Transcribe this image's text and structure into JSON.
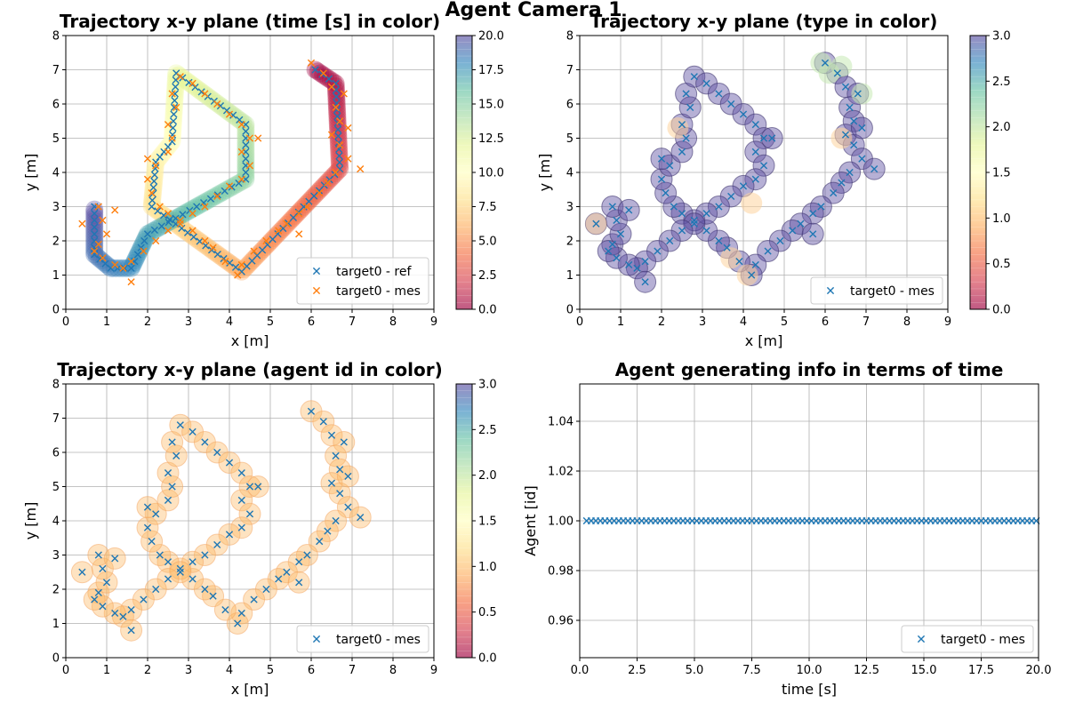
{
  "figure": {
    "suptitle": "Agent Camera 1"
  },
  "colors": {
    "ref": "#1f77b4",
    "mes": "#ff7f0e",
    "violet": "#5e4fa2",
    "orange": "#fdb863"
  },
  "chart_data": [
    {
      "id": "time",
      "type": "scatter",
      "title": "Trajectory x-y plane  (time [s] in color)",
      "xlabel": "x [m]",
      "ylabel": "y [m]",
      "xlim": [
        0,
        9
      ],
      "ylim": [
        0,
        8
      ],
      "xticks": [
        "0",
        "1",
        "2",
        "3",
        "4",
        "5",
        "6",
        "7",
        "8",
        "9"
      ],
      "yticks": [
        "0",
        "1",
        "2",
        "3",
        "4",
        "5",
        "6",
        "7",
        "8"
      ],
      "grid": true,
      "legend": {
        "placement": "lower-right",
        "entries": [
          "target0 - ref",
          "target0 - mes"
        ]
      },
      "colorbar": {
        "range": [
          0,
          20
        ],
        "ticks": [
          "0.0",
          "2.5",
          "5.0",
          "7.5",
          "10.0",
          "12.5",
          "15.0",
          "17.5",
          "20.0"
        ],
        "colormap": "Spectral"
      },
      "series": [
        {
          "name": "target0 - ref",
          "kind": "reference path",
          "path": [
            [
              6.1,
              7.0
            ],
            [
              6.6,
              6.6
            ],
            [
              6.7,
              4.1
            ],
            [
              4.3,
              1.1
            ],
            [
              2.1,
              3.0
            ],
            [
              2.2,
              4.3
            ],
            [
              2.6,
              4.9
            ],
            [
              2.7,
              6.9
            ],
            [
              4.4,
              5.4
            ],
            [
              4.4,
              3.8
            ],
            [
              2.0,
              2.2
            ],
            [
              1.6,
              1.2
            ],
            [
              1.1,
              1.2
            ],
            [
              0.7,
              1.6
            ],
            [
              0.7,
              3.0
            ]
          ]
        },
        {
          "name": "target0 - mes",
          "kind": "measurements",
          "points": [
            [
              6.0,
              7.2
            ],
            [
              6.3,
              6.9
            ],
            [
              6.5,
              6.5
            ],
            [
              6.8,
              6.3
            ],
            [
              6.6,
              5.9
            ],
            [
              6.7,
              5.5
            ],
            [
              6.5,
              5.1
            ],
            [
              6.7,
              4.8
            ],
            [
              6.9,
              4.4
            ],
            [
              6.6,
              4.0
            ],
            [
              6.4,
              3.7
            ],
            [
              6.2,
              3.4
            ],
            [
              5.9,
              3.0
            ],
            [
              5.7,
              2.8
            ],
            [
              5.4,
              2.5
            ],
            [
              5.2,
              2.3
            ],
            [
              4.9,
              2.0
            ],
            [
              4.6,
              1.7
            ],
            [
              4.3,
              1.3
            ],
            [
              4.2,
              1.0
            ],
            [
              3.9,
              1.4
            ],
            [
              3.6,
              1.8
            ],
            [
              3.4,
              2.0
            ],
            [
              3.1,
              2.3
            ],
            [
              2.8,
              2.6
            ],
            [
              2.5,
              2.8
            ],
            [
              2.3,
              3.0
            ],
            [
              2.1,
              3.4
            ],
            [
              2.0,
              3.8
            ],
            [
              2.2,
              4.2
            ],
            [
              2.5,
              4.6
            ],
            [
              2.6,
              5.0
            ],
            [
              2.5,
              5.4
            ],
            [
              2.7,
              5.9
            ],
            [
              2.6,
              6.3
            ],
            [
              2.8,
              6.8
            ],
            [
              3.1,
              6.6
            ],
            [
              3.4,
              6.3
            ],
            [
              3.7,
              6.0
            ],
            [
              4.0,
              5.7
            ],
            [
              4.3,
              5.4
            ],
            [
              4.5,
              5.0
            ],
            [
              4.3,
              4.6
            ],
            [
              4.5,
              4.2
            ],
            [
              4.3,
              3.8
            ],
            [
              4.0,
              3.6
            ],
            [
              3.7,
              3.3
            ],
            [
              3.4,
              3.0
            ],
            [
              3.1,
              2.8
            ],
            [
              2.8,
              2.5
            ],
            [
              2.5,
              2.3
            ],
            [
              2.2,
              2.0
            ],
            [
              1.9,
              1.7
            ],
            [
              1.6,
              1.4
            ],
            [
              1.4,
              1.2
            ],
            [
              1.2,
              1.3
            ],
            [
              0.9,
              1.5
            ],
            [
              0.8,
              1.9
            ],
            [
              1.0,
              2.2
            ],
            [
              0.9,
              2.6
            ],
            [
              0.8,
              3.0
            ],
            [
              0.4,
              2.5
            ],
            [
              1.2,
              2.9
            ],
            [
              0.7,
              1.7
            ],
            [
              1.6,
              0.8
            ],
            [
              7.2,
              4.1
            ],
            [
              5.7,
              2.2
            ],
            [
              4.7,
              5.0
            ],
            [
              2.0,
              4.4
            ],
            [
              6.9,
              5.3
            ]
          ]
        }
      ]
    },
    {
      "id": "type",
      "type": "scatter",
      "title": "Trajectory x-y plane (type in color)",
      "xlabel": "x [m]",
      "ylabel": "y [m]",
      "xlim": [
        0,
        9
      ],
      "ylim": [
        0,
        8
      ],
      "xticks": [
        "0",
        "1",
        "2",
        "3",
        "4",
        "5",
        "6",
        "7",
        "8",
        "9"
      ],
      "yticks": [
        "0",
        "1",
        "2",
        "3",
        "4",
        "5",
        "6",
        "7",
        "8"
      ],
      "grid": true,
      "legend": {
        "placement": "lower-right",
        "entries": [
          "target0 - mes"
        ]
      },
      "colorbar": {
        "range": [
          0,
          3
        ],
        "ticks": [
          "0.0",
          "0.5",
          "1.0",
          "1.5",
          "2.0",
          "2.5",
          "3.0"
        ],
        "colormap": "Spectral"
      },
      "series": [
        {
          "name": "target0 - mes",
          "points_from": "time"
        }
      ],
      "special_points": [
        [
          5.9,
          7.2
        ],
        [
          6.1,
          6.9
        ],
        [
          6.4,
          7.1
        ],
        [
          6.9,
          6.3
        ],
        [
          0.4,
          2.5
        ],
        [
          2.4,
          5.3
        ],
        [
          4.2,
          3.1
        ],
        [
          4.1,
          1.0
        ],
        [
          3.7,
          1.5
        ],
        [
          6.4,
          5.0
        ]
      ]
    },
    {
      "id": "agent",
      "type": "scatter",
      "title": "Trajectory x-y plane (agent id in color)",
      "xlabel": "x [m]",
      "ylabel": "y [m]",
      "xlim": [
        0,
        9
      ],
      "ylim": [
        0,
        8
      ],
      "xticks": [
        "0",
        "1",
        "2",
        "3",
        "4",
        "5",
        "6",
        "7",
        "8",
        "9"
      ],
      "yticks": [
        "0",
        "1",
        "2",
        "3",
        "4",
        "5",
        "6",
        "7",
        "8"
      ],
      "grid": true,
      "legend": {
        "placement": "lower-right",
        "entries": [
          "target0 - mes"
        ]
      },
      "colorbar": {
        "range": [
          0,
          3
        ],
        "ticks": [
          "0.0",
          "0.5",
          "1.0",
          "1.5",
          "2.0",
          "2.5",
          "3.0"
        ],
        "colormap": "Spectral"
      },
      "series": [
        {
          "name": "target0 - mes",
          "points_from": "time"
        }
      ]
    },
    {
      "id": "info",
      "type": "scatter",
      "title": "Agent generating info in terms of time",
      "xlabel": "time [s]",
      "ylabel": "Agent [id]",
      "xlim": [
        0,
        20
      ],
      "ylim": [
        0.945,
        1.055
      ],
      "xticks": [
        "0.0",
        "2.5",
        "5.0",
        "7.5",
        "10.0",
        "12.5",
        "15.0",
        "17.5",
        "20.0"
      ],
      "yticks": [
        "0.96",
        "0.98",
        "1.00",
        "1.02",
        "1.04"
      ],
      "grid": true,
      "legend": {
        "placement": "lower-right",
        "entries": [
          "target0 - mes"
        ]
      },
      "series": [
        {
          "name": "target0 - mes",
          "y": 1.0,
          "x_start": 0.3,
          "x_end": 20.0,
          "x_step": 0.2
        }
      ]
    }
  ]
}
